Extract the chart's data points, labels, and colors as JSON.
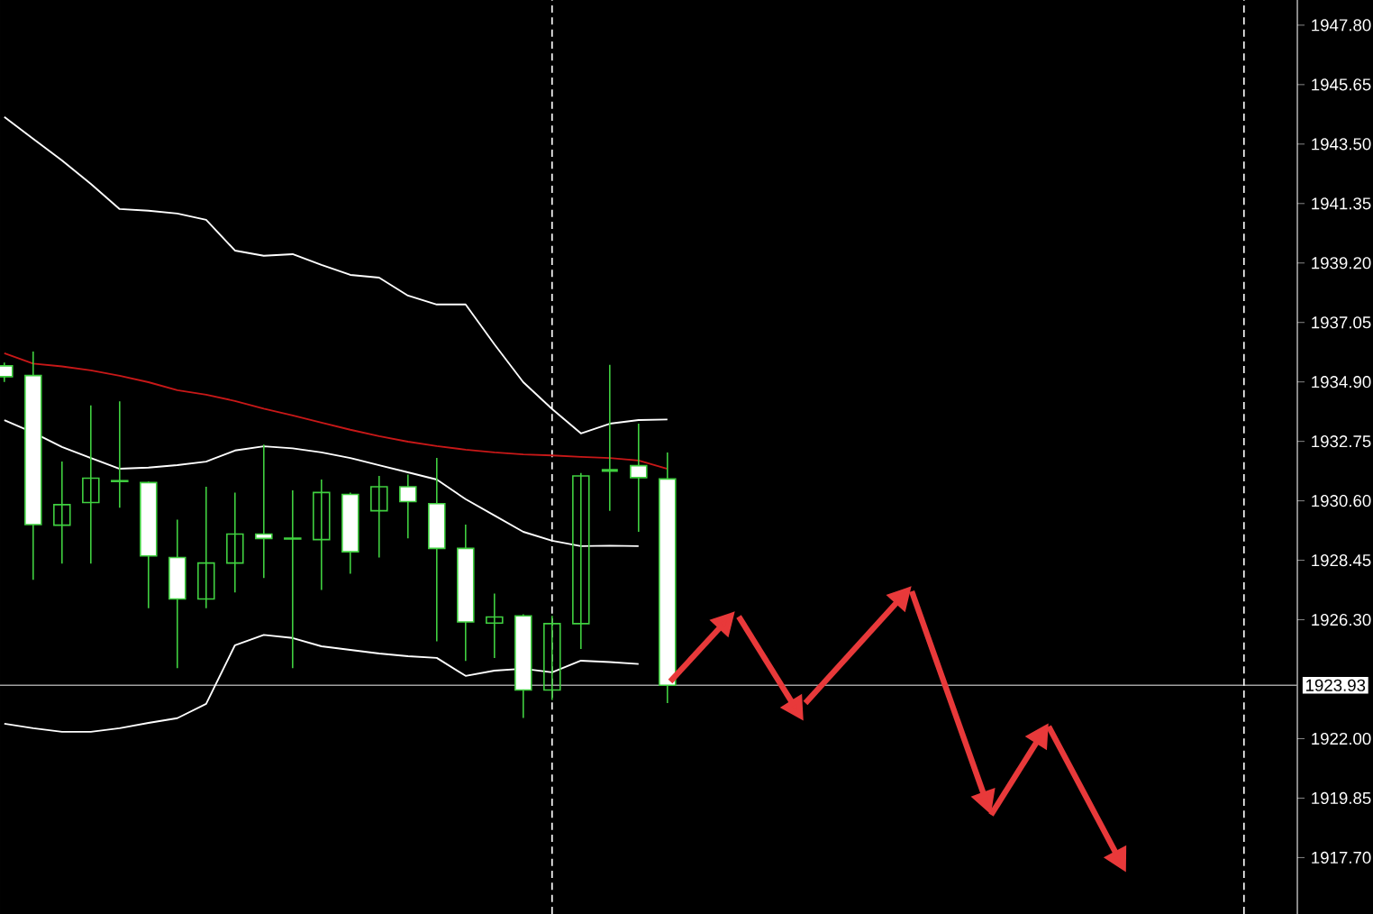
{
  "chart_data": {
    "type": "candlestick",
    "color": "#40d040",
    "categories": [
      null,
      null,
      null,
      null,
      null,
      null,
      null,
      null,
      null,
      null,
      null,
      null,
      null,
      null,
      null,
      null,
      null,
      null,
      null,
      null,
      null,
      null,
      null,
      null
    ],
    "ohlc": [
      [
        1935.48,
        1935.6,
        1934.9,
        1935.09
      ],
      [
        1935.13,
        1936.0,
        1927.74,
        1929.74
      ],
      [
        1929.72,
        1932.02,
        1928.33,
        1930.46
      ],
      [
        1930.54,
        1934.05,
        1928.33,
        1931.42
      ],
      [
        1931.33,
        1934.2,
        1930.35,
        1931.3
      ],
      [
        1931.26,
        1931.3,
        1926.72,
        1928.61
      ],
      [
        1928.55,
        1929.92,
        1924.55,
        1927.05
      ],
      [
        1927.05,
        1931.11,
        1926.72,
        1928.35
      ],
      [
        1928.35,
        1930.9,
        1927.29,
        1929.4
      ],
      [
        1929.4,
        1932.63,
        1927.81,
        1929.24
      ],
      [
        1929.25,
        1930.98,
        1924.55,
        1929.22
      ],
      [
        1929.2,
        1931.37,
        1927.38,
        1930.9
      ],
      [
        1930.83,
        1930.9,
        1927.96,
        1928.76
      ],
      [
        1930.24,
        1931.5,
        1928.55,
        1931.11
      ],
      [
        1931.11,
        1931.55,
        1929.24,
        1930.57
      ],
      [
        1930.5,
        1932.15,
        1925.52,
        1928.88
      ],
      [
        1928.88,
        1929.74,
        1924.81,
        1926.22
      ],
      [
        1926.18,
        1927.25,
        1924.92,
        1926.4
      ],
      [
        1926.44,
        1926.5,
        1922.75,
        1923.76
      ],
      [
        1923.76,
        1926.44,
        1923.4,
        1926.16
      ],
      [
        1926.16,
        1931.61,
        1925.24,
        1931.5
      ],
      [
        1931.7,
        1935.52,
        1930.24,
        1931.7
      ],
      [
        1931.87,
        1933.39,
        1929.48,
        1931.44
      ],
      [
        1931.39,
        1932.35,
        1923.29,
        1923.93
      ]
    ],
    "series": [
      {
        "type": "line",
        "color": "#ffffff",
        "values": [
          1944.48,
          1943.69,
          1942.91,
          1942.06,
          1941.15,
          1941.09,
          1940.99,
          1940.76,
          1939.65,
          1939.46,
          1939.52,
          1939.13,
          1938.77,
          1938.67,
          1938.02,
          1937.7,
          1937.7,
          1936.26,
          1934.89,
          1933.92,
          1933.04,
          1933.39,
          1933.52,
          1933.54
        ]
      },
      {
        "type": "line",
        "color": "#ffffff",
        "values": [
          1933.52,
          1933.07,
          1932.55,
          1932.15,
          1931.76,
          1931.8,
          1931.89,
          1932.02,
          1932.42,
          1932.57,
          1932.5,
          1932.35,
          1932.15,
          1931.89,
          1931.63,
          1931.37,
          1930.66,
          1930.07,
          1929.48,
          1929.16,
          1928.96,
          1928.98,
          1928.96,
          null
        ]
      },
      {
        "type": "line",
        "color": "#ffffff",
        "values": [
          1922.54,
          1922.38,
          1922.25,
          1922.25,
          1922.38,
          1922.57,
          1922.74,
          1923.26,
          1925.38,
          1925.75,
          1925.64,
          1925.34,
          1925.21,
          1925.08,
          1924.98,
          1924.92,
          1924.27,
          1924.46,
          1924.53,
          1924.4,
          1924.82,
          1924.77,
          1924.7,
          null
        ]
      },
      {
        "type": "line",
        "color": "#c81818",
        "values": [
          1935.94,
          1935.56,
          1935.46,
          1935.32,
          1935.12,
          1934.89,
          1934.6,
          1934.44,
          1934.21,
          1933.93,
          1933.69,
          1933.43,
          1933.17,
          1932.94,
          1932.74,
          1932.58,
          1932.45,
          1932.35,
          1932.28,
          1932.24,
          1932.19,
          1932.15,
          1932.06,
          1931.76
        ]
      }
    ],
    "ylim": [
      1915.66,
      1948.71
    ],
    "yticks": [
      {
        "value": 1917.7,
        "label": "1917.70"
      },
      {
        "value": 1919.85,
        "label": "1919.85"
      },
      {
        "value": 1922.0,
        "label": "1922.00"
      },
      {
        "value": 1926.3,
        "label": "1926.30"
      },
      {
        "value": 1928.45,
        "label": "1928.45"
      },
      {
        "value": 1930.6,
        "label": "1930.60"
      },
      {
        "value": 1932.75,
        "label": "1932.75"
      },
      {
        "value": 1934.9,
        "label": "1934.90"
      },
      {
        "value": 1937.05,
        "label": "1937.05"
      },
      {
        "value": 1939.2,
        "label": "1939.20"
      },
      {
        "value": 1941.35,
        "label": "1941.35"
      },
      {
        "value": 1943.5,
        "label": "1943.50"
      },
      {
        "value": 1945.65,
        "label": "1945.65"
      },
      {
        "value": 1947.8,
        "label": "1947.80"
      }
    ],
    "tick_labels": "y",
    "ref_lines": [
      {
        "axis": "y",
        "value": 1923.93,
        "label": "1923.93",
        "color": "#a0a0a0",
        "line_style": "solid"
      }
    ]
  }
}
